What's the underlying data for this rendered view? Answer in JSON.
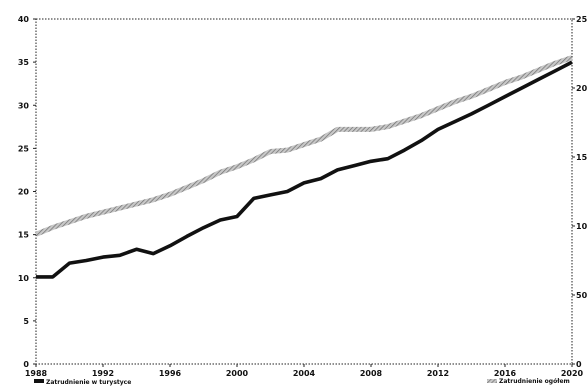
{
  "chart_data": {
    "type": "line",
    "title": "",
    "x": [
      1988,
      1989,
      1990,
      1991,
      1992,
      1993,
      1994,
      1995,
      1996,
      1997,
      1998,
      1999,
      2000,
      2001,
      2002,
      2003,
      2004,
      2005,
      2006,
      2007,
      2008,
      2009,
      2010,
      2011,
      2012,
      2013,
      2014,
      2015,
      2016,
      2017,
      2018,
      2019,
      2020
    ],
    "xlim": [
      1988,
      2020
    ],
    "x_ticks": [
      1988,
      1992,
      1996,
      2000,
      2004,
      2008,
      2012,
      2016,
      2020
    ],
    "x_tick_labels": [
      "1988",
      "1992",
      "1996",
      "2000",
      "2004",
      "2008",
      "2012",
      "2016",
      "2020"
    ],
    "y_left": {
      "lim": [
        0,
        40
      ],
      "ticks": [
        0,
        5,
        10,
        15,
        20,
        25,
        30,
        35,
        40
      ],
      "tick_labels": [
        "0",
        "5",
        "10",
        "15",
        "20",
        "25",
        "30",
        "35",
        "40"
      ]
    },
    "y_right": {
      "lim": [
        0,
        250
      ],
      "ticks": [
        0,
        50,
        100,
        150,
        200,
        250
      ],
      "tick_labels": [
        "0",
        "50",
        "100",
        "150",
        "200",
        "250"
      ]
    },
    "grid": false,
    "series": [
      {
        "name": "Zatrudnienie w turystyce",
        "axis": "left",
        "color": "#111111",
        "style": "thick",
        "values": [
          10.1,
          10.1,
          11.7,
          12.0,
          12.4,
          12.6,
          13.3,
          12.8,
          13.7,
          14.8,
          15.8,
          16.7,
          17.1,
          19.2,
          19.6,
          20.0,
          21.0,
          21.5,
          22.5,
          23.0,
          23.5,
          23.8,
          24.8,
          25.9,
          27.2,
          28.1,
          29.0,
          30.0,
          31.0,
          32.0,
          33.0,
          34.0,
          35.0
        ]
      },
      {
        "name": "Zatrudnienie ogółem",
        "axis": "right",
        "color": "#9a9a9a",
        "style": "hatched",
        "values": [
          94,
          99,
          103,
          107,
          110,
          113,
          116,
          119,
          123,
          128,
          133,
          139,
          143,
          148,
          154,
          155,
          159,
          163,
          170,
          170,
          170,
          172,
          176,
          180,
          185,
          190,
          194,
          199,
          204,
          208,
          213,
          218,
          222
        ]
      }
    ],
    "legend": {
      "placement": "bottom",
      "left_label": "Zatrudnienie w turystyce",
      "right_label": "Zatrudnienie ogółem"
    }
  }
}
